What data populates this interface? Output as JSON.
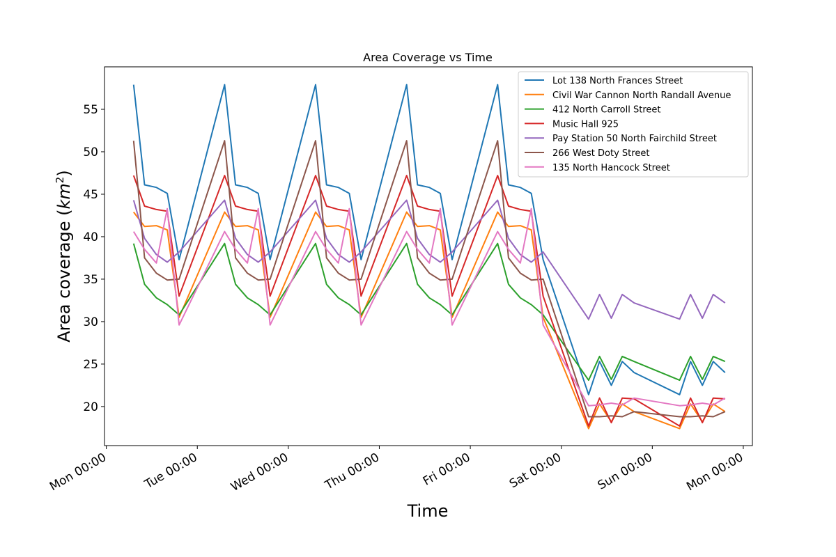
{
  "chart_data": {
    "type": "line",
    "title": "Area Coverage vs Time",
    "xlabel": "Time",
    "ylabel": "Area coverage ($km^2$)",
    "x_tick_labels": [
      "Mon 00:00",
      "Tue 00:00",
      "Wed 00:00",
      "Thu 00:00",
      "Fri 00:00",
      "Sat 00:00",
      "Sun 00:00",
      "Mon 00:00"
    ],
    "x_ticks_days": [
      0,
      1,
      2,
      3,
      4,
      5,
      6,
      7
    ],
    "xlim_days": [
      -0.02,
      7.1
    ],
    "y_ticks": [
      20,
      25,
      30,
      35,
      40,
      45,
      50,
      55
    ],
    "ylim": [
      15.4,
      60
    ],
    "grid": false,
    "legend_position": "upper right",
    "x_days": [
      0.3,
      0.42,
      0.55,
      0.67,
      0.8,
      1.3,
      1.42,
      1.55,
      1.67,
      1.8,
      2.3,
      2.42,
      2.55,
      2.67,
      2.8,
      3.3,
      3.42,
      3.55,
      3.67,
      3.8,
      4.3,
      4.42,
      4.55,
      4.67,
      4.8,
      5.3,
      5.42,
      5.55,
      5.67,
      5.8,
      6.3,
      6.42,
      6.55,
      6.67,
      6.8
    ],
    "series": [
      {
        "name": "Lot 138 North Frances Street",
        "color": "#1f77b4",
        "values": [
          57.9,
          46.1,
          45.8,
          45.1,
          37.3,
          57.9,
          46.1,
          45.8,
          45.1,
          37.3,
          57.9,
          46.1,
          45.8,
          45.1,
          37.3,
          57.9,
          46.1,
          45.8,
          45.1,
          37.3,
          57.9,
          46.1,
          45.8,
          45.1,
          37.3,
          21.4,
          25.3,
          22.5,
          25.3,
          24.0,
          21.4,
          25.3,
          22.5,
          25.3,
          24.0
        ]
      },
      {
        "name": "Civil War Cannon North Randall Avenue",
        "color": "#ff7f0e",
        "values": [
          42.9,
          41.2,
          41.3,
          40.8,
          30.5,
          42.9,
          41.2,
          41.3,
          40.8,
          30.5,
          42.9,
          41.2,
          41.3,
          40.8,
          30.5,
          42.9,
          41.2,
          41.3,
          40.8,
          30.5,
          42.9,
          41.2,
          41.3,
          40.8,
          30.5,
          17.4,
          20.3,
          18.2,
          20.3,
          19.4,
          17.4,
          20.3,
          18.2,
          20.3,
          19.4
        ]
      },
      {
        "name": "412 North Carroll Street",
        "color": "#2ca02c",
        "values": [
          39.2,
          34.4,
          32.8,
          32.0,
          30.8,
          39.2,
          34.4,
          32.8,
          32.0,
          30.8,
          39.2,
          34.4,
          32.8,
          32.0,
          30.8,
          39.2,
          34.4,
          32.8,
          32.0,
          30.8,
          39.2,
          34.4,
          32.8,
          32.0,
          30.8,
          23.1,
          25.9,
          23.2,
          25.9,
          25.3,
          23.1,
          25.9,
          23.2,
          25.9,
          25.3
        ]
      },
      {
        "name": "Music Hall 925",
        "color": "#d62728",
        "values": [
          47.2,
          43.6,
          43.2,
          43.0,
          33.0,
          47.2,
          43.6,
          43.2,
          43.0,
          33.0,
          47.2,
          43.6,
          43.2,
          43.0,
          33.0,
          47.2,
          43.6,
          43.2,
          43.0,
          33.0,
          47.2,
          43.6,
          43.2,
          43.0,
          33.0,
          17.7,
          21.0,
          18.1,
          21.0,
          20.9,
          17.7,
          21.0,
          18.1,
          21.0,
          20.9
        ]
      },
      {
        "name": "Pay Station 50 North Fairchild Street",
        "color": "#9467bd",
        "values": [
          44.3,
          39.8,
          37.9,
          37.0,
          38.2,
          44.3,
          39.8,
          37.9,
          37.0,
          38.2,
          44.3,
          39.8,
          37.9,
          37.0,
          38.2,
          44.3,
          39.8,
          37.9,
          37.0,
          38.2,
          44.3,
          39.8,
          37.9,
          37.0,
          38.2,
          30.3,
          33.2,
          30.4,
          33.2,
          32.2,
          30.3,
          33.2,
          30.4,
          33.2,
          32.2
        ]
      },
      {
        "name": "266 West Doty Street",
        "color": "#8c564b",
        "values": [
          51.3,
          37.5,
          35.7,
          34.9,
          35.0,
          51.3,
          37.5,
          35.7,
          34.9,
          35.0,
          51.3,
          37.5,
          35.7,
          34.9,
          35.0,
          51.3,
          37.5,
          35.7,
          34.9,
          35.0,
          51.3,
          37.5,
          35.7,
          34.9,
          35.0,
          18.8,
          18.8,
          18.9,
          18.8,
          19.4,
          18.8,
          18.8,
          18.9,
          18.8,
          19.4
        ]
      },
      {
        "name": "135 North Hancock Street",
        "color": "#e377c2",
        "values": [
          40.6,
          38.5,
          36.9,
          43.3,
          29.6,
          40.6,
          38.5,
          36.9,
          43.3,
          29.6,
          40.6,
          38.5,
          36.9,
          43.3,
          29.6,
          40.6,
          38.5,
          36.9,
          43.3,
          29.6,
          40.6,
          38.5,
          36.9,
          43.3,
          29.6,
          20.1,
          20.2,
          20.4,
          20.2,
          21.0,
          20.1,
          20.2,
          20.4,
          20.2,
          21.0
        ]
      }
    ]
  }
}
